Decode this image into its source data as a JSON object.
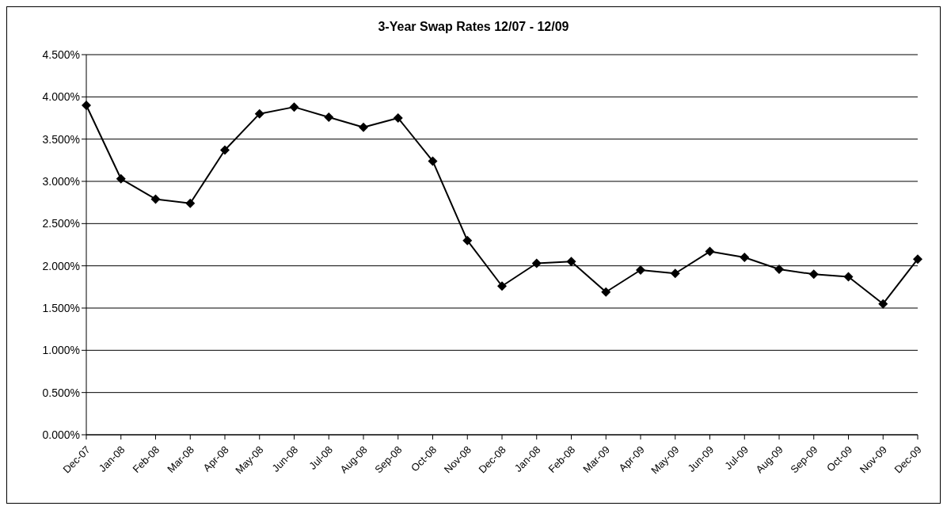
{
  "chart_data": {
    "type": "line",
    "title": "3-Year Swap Rates 12/07 - 12/09",
    "categories": [
      "Dec-07",
      "Jan-08",
      "Feb-08",
      "Mar-08",
      "Apr-08",
      "May-08",
      "Jun-08",
      "Jul-08",
      "Aug-08",
      "Sep-08",
      "Oct-08",
      "Nov-08",
      "Dec-08",
      "Jan-08",
      "Feb-08",
      "Mar-09",
      "Apr-09",
      "May-09",
      "Jun-09",
      "Jul-09",
      "Aug-09",
      "Sep-09",
      "Oct-09",
      "Nov-09",
      "Dec-09"
    ],
    "series": [
      {
        "color": "#000000",
        "values": [
          3.9,
          3.03,
          2.79,
          2.74,
          3.37,
          3.8,
          3.88,
          3.76,
          3.64,
          3.75,
          3.24,
          2.3,
          1.76,
          2.03,
          2.05,
          1.69,
          1.95,
          1.91,
          2.17,
          2.1,
          1.96,
          1.9,
          1.87,
          1.55,
          2.08
        ]
      }
    ],
    "ylim": [
      0,
      4.5
    ],
    "yticks": [
      {
        "value": 0,
        "label": "0.000%"
      },
      {
        "value": 0.5,
        "label": "0.500%"
      },
      {
        "value": 1,
        "label": "1.000%"
      },
      {
        "value": 1.5,
        "label": "1.500%"
      },
      {
        "value": 2,
        "label": "2.000%"
      },
      {
        "value": 2.5,
        "label": "2.500%"
      },
      {
        "value": 3,
        "label": "3.000%"
      },
      {
        "value": 3.5,
        "label": "3.500%"
      },
      {
        "value": 4,
        "label": "4.000%"
      },
      {
        "value": 4.5,
        "label": "4.500%"
      }
    ],
    "grid": "y",
    "legend": false,
    "marker": "diamond",
    "line_style": "solid"
  }
}
